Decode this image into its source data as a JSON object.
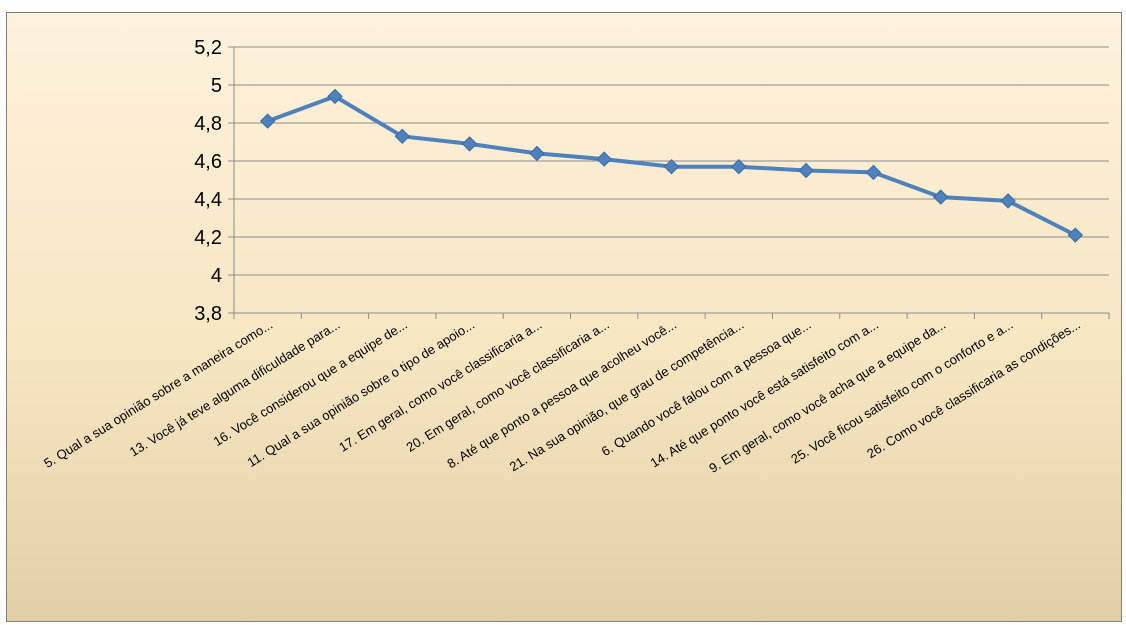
{
  "chart_data": {
    "type": "line",
    "title": "",
    "xlabel": "",
    "ylabel": "",
    "ylim": [
      3.8,
      5.2
    ],
    "yticks": [
      "3,8",
      "4",
      "4,2",
      "4,4",
      "4,6",
      "4,8",
      "5",
      "5,2"
    ],
    "ytick_values": [
      3.8,
      4.0,
      4.2,
      4.4,
      4.6,
      4.8,
      5.0,
      5.2
    ],
    "grid": true,
    "legend": "none",
    "line_color": "#4f81bd",
    "categories": [
      "5. Qual a sua opinião sobre a maneira como...",
      "13. Você já teve alguma dificuldade para...",
      "16. Você considerou que a equipe de...",
      "11. Qual a sua opinião sobre o tipo de apoio...",
      "17. Em geral, como você classificaria a...",
      "20. Em geral, como você classificaria a...",
      "8. Até que ponto a pessoa que acolheu você...",
      "21. Na sua opinião, que grau de competência...",
      "6. Quando você falou com a pessoa que...",
      "14. Até que ponto você está satisfeito com a...",
      "9. Em geral, como você acha que a equipe da...",
      "25. Você ficou satisfeito com o conforto e a...",
      "26. Como você classificaria as condições..."
    ],
    "values": [
      4.81,
      4.94,
      4.73,
      4.69,
      4.64,
      4.61,
      4.57,
      4.57,
      4.55,
      4.54,
      4.41,
      4.39,
      4.21
    ]
  }
}
